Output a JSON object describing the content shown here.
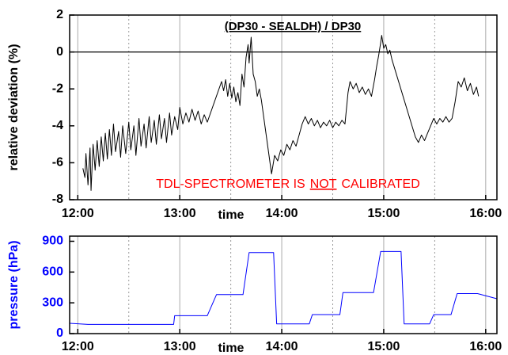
{
  "chart_data": [
    {
      "type": "line",
      "title": "(DP30 - SEALDH) / DP30",
      "y_label": "relative deviation (%)",
      "x_label": "time",
      "annotation": [
        "TDL-SPECTROMETER IS",
        "NOT",
        "CALIBRATED"
      ],
      "annotation_color": "#ff0000",
      "xlim": [
        11.92,
        16.11
      ],
      "xticks": [
        {
          "value": 12,
          "label": "12:00"
        },
        {
          "value": 13,
          "label": "13:00"
        },
        {
          "value": 14,
          "label": "14:00"
        },
        {
          "value": 15,
          "label": "15:00"
        },
        {
          "value": 16,
          "label": "16:00"
        }
      ],
      "xminorticks": [
        12.5,
        13.5,
        14.5,
        15.5
      ],
      "ylim": [
        -8,
        2
      ],
      "yticks": [
        -8,
        -6,
        -4,
        -2,
        0,
        2
      ],
      "grid": true,
      "zero_line": true,
      "axis_color": "#000000",
      "x": [
        12.05,
        12.07,
        12.08,
        12.1,
        12.12,
        12.13,
        12.15,
        12.17,
        12.19,
        12.21,
        12.23,
        12.25,
        12.27,
        12.29,
        12.31,
        12.33,
        12.35,
        12.37,
        12.4,
        12.42,
        12.44,
        12.47,
        12.5,
        12.52,
        12.55,
        12.57,
        12.6,
        12.62,
        12.65,
        12.67,
        12.7,
        12.72,
        12.75,
        12.77,
        12.8,
        12.82,
        12.85,
        12.87,
        12.9,
        12.92,
        12.95,
        12.98,
        13.0,
        13.03,
        13.06,
        13.09,
        13.12,
        13.15,
        13.18,
        13.21,
        13.24,
        13.27,
        13.41,
        13.43,
        13.45,
        13.47,
        13.49,
        13.51,
        13.53,
        13.55,
        13.57,
        13.59,
        13.61,
        13.63,
        13.65,
        13.67,
        13.68,
        13.7,
        13.72,
        13.74,
        13.76,
        13.78,
        13.8,
        13.9,
        13.93,
        13.96,
        13.99,
        14.02,
        14.05,
        14.08,
        14.11,
        14.14,
        14.17,
        14.2,
        14.23,
        14.26,
        14.29,
        14.32,
        14.35,
        14.38,
        14.41,
        14.44,
        14.47,
        14.5,
        14.53,
        14.56,
        14.59,
        14.62,
        14.65,
        14.67,
        14.7,
        14.73,
        14.76,
        14.79,
        14.82,
        14.85,
        14.88,
        14.91,
        14.93,
        14.95,
        14.97,
        14.98,
        15.0,
        15.02,
        15.04,
        15.06,
        15.08,
        15.31,
        15.34,
        15.37,
        15.4,
        15.43,
        15.46,
        15.49,
        15.52,
        15.55,
        15.58,
        15.61,
        15.64,
        15.67,
        15.7,
        15.73,
        15.76,
        15.79,
        15.82,
        15.85,
        15.88,
        15.91,
        15.93
      ],
      "series": [
        {
          "name": "(DP30 - SEALDH) / DP30",
          "color": "#000000",
          "values": [
            -6.3,
            -6.8,
            -5.5,
            -7.2,
            -5.2,
            -7.5,
            -5.0,
            -6.4,
            -4.8,
            -6.2,
            -4.6,
            -5.9,
            -4.4,
            -5.8,
            -4.2,
            -5.6,
            -3.9,
            -5.4,
            -4.3,
            -5.7,
            -4.0,
            -5.5,
            -3.8,
            -5.3,
            -4.0,
            -5.6,
            -3.6,
            -5.1,
            -3.9,
            -5.2,
            -3.5,
            -4.9,
            -3.7,
            -5.0,
            -3.4,
            -4.7,
            -3.6,
            -4.9,
            -3.3,
            -4.5,
            -3.5,
            -4.2,
            -3.0,
            -3.9,
            -3.3,
            -3.8,
            -3.1,
            -3.7,
            -3.2,
            -3.9,
            -3.4,
            -3.8,
            -1.6,
            -2.1,
            -1.5,
            -2.4,
            -1.7,
            -2.5,
            -1.9,
            -2.7,
            -2.2,
            -2.9,
            -1.2,
            -1.9,
            -0.3,
            0.4,
            -0.6,
            0.8,
            -1.2,
            -1.6,
            -2.4,
            -2.0,
            -2.6,
            -6.6,
            -5.6,
            -5.9,
            -5.3,
            -5.6,
            -5.0,
            -5.3,
            -4.8,
            -5.1,
            -4.5,
            -3.9,
            -3.5,
            -3.9,
            -3.6,
            -4.0,
            -3.7,
            -4.1,
            -3.8,
            -4.0,
            -3.7,
            -4.1,
            -3.8,
            -4.0,
            -3.7,
            -3.9,
            -2.2,
            -1.6,
            -2.0,
            -1.7,
            -2.2,
            -1.9,
            -2.3,
            -2.0,
            -2.4,
            -1.5,
            -0.8,
            -0.2,
            0.5,
            0.9,
            0.2,
            0.4,
            -0.1,
            0.1,
            -0.4,
            -4.6,
            -4.9,
            -4.5,
            -4.8,
            -4.4,
            -4.0,
            -3.6,
            -3.9,
            -3.6,
            -3.8,
            -3.5,
            -3.8,
            -3.6,
            -2.7,
            -1.6,
            -1.9,
            -1.4,
            -2.1,
            -1.7,
            -2.3,
            -1.9,
            -2.4
          ]
        }
      ]
    },
    {
      "type": "line",
      "y_label": "pressure (hPa)",
      "x_label": "time",
      "xlim": [
        11.92,
        16.11
      ],
      "xticks": [
        {
          "value": 12,
          "label": "12:00"
        },
        {
          "value": 13,
          "label": "13:00"
        },
        {
          "value": 14,
          "label": "14:00"
        },
        {
          "value": 15,
          "label": "15:00"
        },
        {
          "value": 16,
          "label": "16:00"
        }
      ],
      "xminorticks": [
        12.5,
        13.5,
        14.5,
        15.5
      ],
      "ylim": [
        0,
        950
      ],
      "yticks": [
        0,
        300,
        600,
        900
      ],
      "grid": true,
      "zero_line": false,
      "axis_color": "#0000ff",
      "x": [
        11.92,
        12.1,
        12.94,
        12.95,
        13.27,
        13.36,
        13.62,
        13.68,
        13.92,
        13.95,
        14.27,
        14.3,
        14.57,
        14.6,
        14.9,
        14.97,
        15.17,
        15.2,
        15.45,
        15.49,
        15.66,
        15.72,
        15.92,
        16.11
      ],
      "series": [
        {
          "name": "pressure (hPa)",
          "color": "#0000ff",
          "values": [
            100,
            90,
            90,
            175,
            175,
            380,
            380,
            790,
            790,
            95,
            95,
            185,
            185,
            400,
            400,
            800,
            800,
            95,
            95,
            185,
            185,
            390,
            390,
            340
          ]
        }
      ]
    }
  ]
}
